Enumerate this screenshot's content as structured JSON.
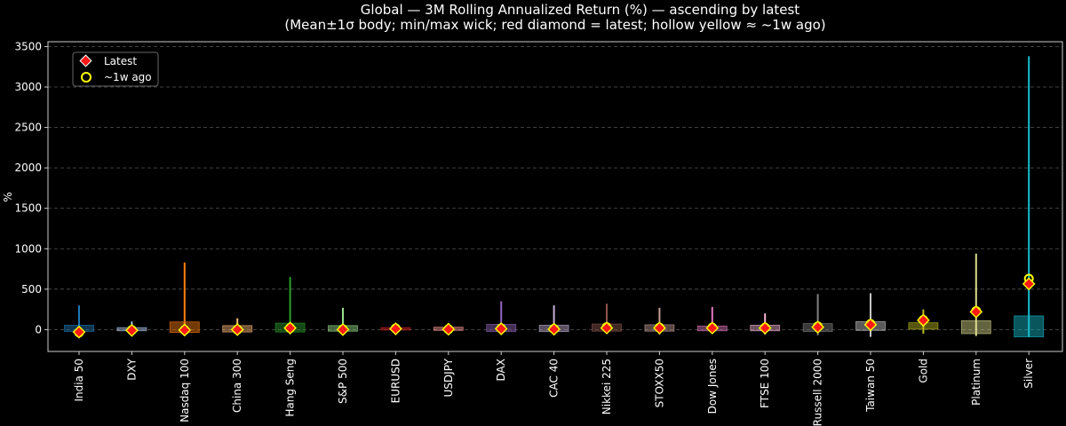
{
  "chart_data": {
    "type": "boxplot",
    "title": "Global — 3M Rolling Annualized Return (%) — ascending by latest",
    "subtitle": "(Mean±1σ body; min/max wick; red diamond = latest; hollow yellow ≈ ~1w ago)",
    "xlabel": "",
    "ylabel": "%",
    "ylim": [
      -270,
      3560
    ],
    "yticks": [
      0,
      500,
      1000,
      1500,
      2000,
      2500,
      3000,
      3500
    ],
    "grid": true,
    "legend": {
      "placement": "top-left",
      "entries": [
        {
          "label": "Latest",
          "marker": "red-diamond-icon"
        },
        {
          "label": "~1w ago",
          "marker": "hollow-yellow-circle-icon"
        }
      ]
    },
    "categories": [
      "India 50",
      "DXY",
      "Nasdaq 100",
      "China 300",
      "Hang Seng",
      "S&P 500",
      "EURUSD",
      "USDJPY",
      "DAX",
      "CAC 40",
      "Nikkei 225",
      "STOXX50",
      "Dow Jones",
      "FTSE 100",
      "Russell 2000",
      "Taiwan 50",
      "Gold",
      "Platinum",
      "Silver"
    ],
    "colors": [
      "#1f77b4",
      "#aec7e8",
      "#ff7f0e",
      "#ffbb78",
      "#2ca02c",
      "#98df8a",
      "#d62728",
      "#ff9896",
      "#9467bd",
      "#c5b0d5",
      "#8c564b",
      "#c49c94",
      "#e377c2",
      "#f7b6d2",
      "#7f7f7f",
      "#c7c7c7",
      "#bcbd22",
      "#dbdb8d",
      "#17becf"
    ],
    "series": [
      {
        "name": "Mean",
        "values": [
          15,
          5,
          30,
          10,
          25,
          15,
          10,
          10,
          20,
          15,
          25,
          20,
          15,
          20,
          25,
          45,
          45,
          30,
          40
        ]
      },
      {
        "name": "Std",
        "values": [
          40,
          20,
          65,
          40,
          55,
          35,
          15,
          20,
          45,
          40,
          45,
          40,
          30,
          35,
          50,
          55,
          40,
          80,
          130
        ]
      },
      {
        "name": "Min",
        "values": [
          -50,
          -40,
          -50,
          -50,
          -60,
          -40,
          -20,
          -30,
          -40,
          -50,
          -50,
          -60,
          -40,
          -60,
          -70,
          -90,
          -50,
          -80,
          -90
        ]
      },
      {
        "name": "Max",
        "values": [
          300,
          100,
          830,
          140,
          650,
          270,
          30,
          80,
          350,
          300,
          320,
          270,
          280,
          200,
          440,
          450,
          250,
          940,
          3380
        ]
      },
      {
        "name": "Latest",
        "values": [
          -30,
          -10,
          -5,
          0,
          20,
          0,
          10,
          5,
          10,
          5,
          20,
          20,
          20,
          20,
          30,
          60,
          115,
          220,
          565
        ]
      },
      {
        "name": "~1w ago",
        "values": [
          -35,
          -5,
          -5,
          0,
          20,
          5,
          15,
          5,
          15,
          10,
          30,
          25,
          25,
          25,
          40,
          70,
          120,
          230,
          630
        ]
      }
    ]
  }
}
